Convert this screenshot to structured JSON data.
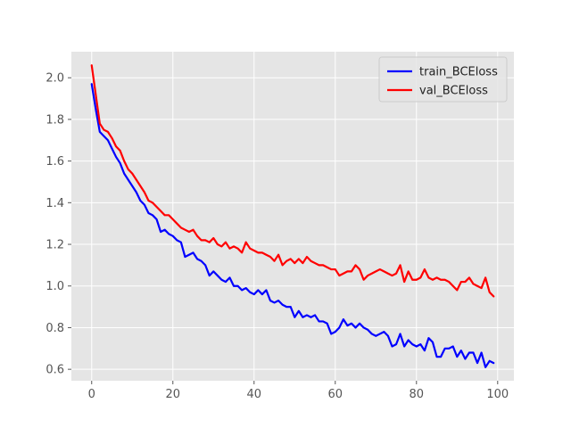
{
  "chart_data": {
    "type": "line",
    "title": "",
    "xlabel": "",
    "ylabel": "",
    "xlim": [
      -5,
      104
    ],
    "ylim": [
      0.545,
      2.125
    ],
    "grid": true,
    "background": "#e5e5e5",
    "legend_position": "top-right",
    "x_ticks": [
      0,
      20,
      40,
      60,
      80,
      100
    ],
    "x_tick_labels": [
      "0",
      "20",
      "40",
      "60",
      "80",
      "100"
    ],
    "y_ticks": [
      0.6,
      0.8,
      1.0,
      1.2,
      1.4,
      1.6,
      1.8,
      2.0
    ],
    "y_tick_labels": [
      "0.6",
      "0.8",
      "1.0",
      "1.2",
      "1.4",
      "1.6",
      "1.8",
      "2.0"
    ],
    "x": [
      0,
      1,
      2,
      3,
      4,
      5,
      6,
      7,
      8,
      9,
      10,
      11,
      12,
      13,
      14,
      15,
      16,
      17,
      18,
      19,
      20,
      21,
      22,
      23,
      24,
      25,
      26,
      27,
      28,
      29,
      30,
      31,
      32,
      33,
      34,
      35,
      36,
      37,
      38,
      39,
      40,
      41,
      42,
      43,
      44,
      45,
      46,
      47,
      48,
      49,
      50,
      51,
      52,
      53,
      54,
      55,
      56,
      57,
      58,
      59,
      60,
      61,
      62,
      63,
      64,
      65,
      66,
      67,
      68,
      69,
      70,
      71,
      72,
      73,
      74,
      75,
      76,
      77,
      78,
      79,
      80,
      81,
      82,
      83,
      84,
      85,
      86,
      87,
      88,
      89,
      90,
      91,
      92,
      93,
      94,
      95,
      96,
      97,
      98,
      99
    ],
    "series": [
      {
        "name": "train_BCEloss",
        "color": "#0000ff",
        "values": [
          1.97,
          1.85,
          1.74,
          1.72,
          1.7,
          1.66,
          1.62,
          1.59,
          1.54,
          1.51,
          1.48,
          1.45,
          1.41,
          1.39,
          1.35,
          1.34,
          1.32,
          1.26,
          1.27,
          1.25,
          1.24,
          1.22,
          1.21,
          1.14,
          1.15,
          1.16,
          1.13,
          1.12,
          1.1,
          1.05,
          1.07,
          1.05,
          1.03,
          1.02,
          1.04,
          1.0,
          1.0,
          0.98,
          0.99,
          0.97,
          0.96,
          0.98,
          0.96,
          0.98,
          0.93,
          0.92,
          0.93,
          0.91,
          0.9,
          0.9,
          0.85,
          0.88,
          0.85,
          0.86,
          0.85,
          0.86,
          0.83,
          0.83,
          0.82,
          0.77,
          0.78,
          0.8,
          0.84,
          0.81,
          0.82,
          0.8,
          0.82,
          0.8,
          0.79,
          0.77,
          0.76,
          0.77,
          0.78,
          0.76,
          0.71,
          0.72,
          0.77,
          0.71,
          0.74,
          0.72,
          0.71,
          0.72,
          0.69,
          0.75,
          0.73,
          0.66,
          0.66,
          0.7,
          0.7,
          0.71,
          0.66,
          0.69,
          0.65,
          0.68,
          0.68,
          0.63,
          0.68,
          0.61,
          0.64,
          0.63
        ]
      },
      {
        "name": "val_BCEloss",
        "color": "#ff0000",
        "values": [
          2.06,
          1.92,
          1.78,
          1.75,
          1.74,
          1.71,
          1.67,
          1.65,
          1.6,
          1.56,
          1.54,
          1.51,
          1.48,
          1.45,
          1.41,
          1.4,
          1.38,
          1.36,
          1.34,
          1.34,
          1.32,
          1.3,
          1.28,
          1.27,
          1.26,
          1.27,
          1.24,
          1.22,
          1.22,
          1.21,
          1.23,
          1.2,
          1.19,
          1.21,
          1.18,
          1.19,
          1.18,
          1.16,
          1.21,
          1.18,
          1.17,
          1.16,
          1.16,
          1.15,
          1.14,
          1.12,
          1.15,
          1.1,
          1.12,
          1.13,
          1.11,
          1.13,
          1.11,
          1.14,
          1.12,
          1.11,
          1.1,
          1.1,
          1.09,
          1.08,
          1.08,
          1.05,
          1.06,
          1.07,
          1.07,
          1.1,
          1.08,
          1.03,
          1.05,
          1.06,
          1.07,
          1.08,
          1.07,
          1.06,
          1.05,
          1.06,
          1.1,
          1.02,
          1.07,
          1.03,
          1.03,
          1.04,
          1.08,
          1.04,
          1.03,
          1.04,
          1.03,
          1.03,
          1.02,
          1.0,
          0.98,
          1.02,
          1.02,
          1.04,
          1.01,
          1.0,
          0.99,
          1.04,
          0.97,
          0.95
        ]
      }
    ]
  }
}
